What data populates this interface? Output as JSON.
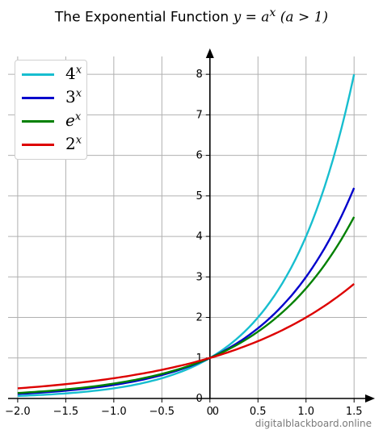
{
  "chart_data": {
    "type": "line",
    "title_main": "The Exponential Function",
    "title_math": "y = a",
    "title_exp": "x",
    "title_cond": "(a > 1)",
    "x_range": [
      -2.0,
      1.5
    ],
    "xlim": [
      -2.1,
      1.7
    ],
    "ylim": [
      0,
      8.6
    ],
    "x_ticks": [
      -2.0,
      -1.5,
      -1.0,
      -0.5,
      0,
      0.5,
      1.0,
      1.5
    ],
    "x_tick_labels": [
      "−2.0",
      "−1.5",
      "−1.0",
      "−0.5",
      "0",
      "0.5",
      "1.0",
      "1.5"
    ],
    "y_ticks": [
      0,
      1,
      2,
      3,
      4,
      5,
      6,
      7,
      8
    ],
    "y_tick_labels": [
      "0",
      "1",
      "2",
      "3",
      "4",
      "5",
      "6",
      "7",
      "8"
    ],
    "x_origin_extra_label": "0",
    "grid": true,
    "legend_position": "top-left",
    "series": [
      {
        "name": "4",
        "exp": "x",
        "base": 4,
        "color": "#17becf",
        "x": [
          -2.0,
          -1.5,
          -1.0,
          -0.5,
          0,
          0.5,
          1.0,
          1.5
        ],
        "y": [
          0.0625,
          0.125,
          0.25,
          0.5,
          1,
          2,
          4,
          8
        ]
      },
      {
        "name": "3",
        "exp": "x",
        "base": 3,
        "color": "#0000cc",
        "x": [
          -2.0,
          -1.5,
          -1.0,
          -0.5,
          0,
          0.5,
          1.0,
          1.5
        ],
        "y": [
          0.111,
          0.192,
          0.333,
          0.577,
          1,
          1.732,
          3,
          5.196
        ]
      },
      {
        "name": "e",
        "exp": "x",
        "base": 2.718281828,
        "color": "#008000",
        "x": [
          -2.0,
          -1.5,
          -1.0,
          -0.5,
          0,
          0.5,
          1.0,
          1.5
        ],
        "y": [
          0.135,
          0.223,
          0.368,
          0.607,
          1,
          1.649,
          2.718,
          4.482
        ]
      },
      {
        "name": "2",
        "exp": "x",
        "base": 2,
        "color": "#dd0000",
        "x": [
          -2.0,
          -1.5,
          -1.0,
          -0.5,
          0,
          0.5,
          1.0,
          1.5
        ],
        "y": [
          0.25,
          0.354,
          0.5,
          0.707,
          1,
          1.414,
          2,
          2.828
        ]
      }
    ]
  },
  "credit": "digitalblackboard.online"
}
